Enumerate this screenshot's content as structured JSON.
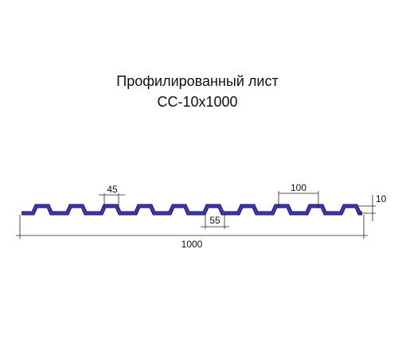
{
  "title": "Профилированный лист",
  "subtitle": "СС-10х1000",
  "dimensions": {
    "rib_top": "45",
    "pitch": "100",
    "height": "10",
    "rib_bottom": "55",
    "total_width": "1000"
  }
}
